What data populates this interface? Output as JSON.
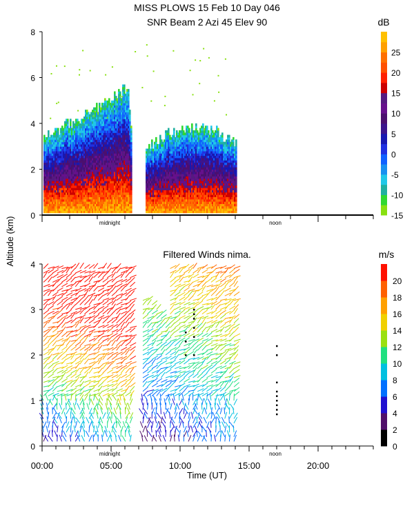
{
  "chart_data": [
    {
      "type": "heatmap",
      "title_line1": "MISS PLOWS  15 Feb 10 Day 046",
      "title_line2": "SNR Beam 2 Azi  45 Elev 90",
      "ylabel": "Altitude (km)",
      "ylim": [
        0,
        8
      ],
      "yticks": [
        "0",
        "2",
        "4",
        "6",
        "8"
      ],
      "xlim": [
        0,
        24
      ],
      "markers": [
        "midnight",
        "noon"
      ],
      "colorbar": {
        "units": "dB",
        "labels": [
          "-15",
          "-10",
          "-5",
          "0",
          "5",
          "10",
          "15",
          "20",
          "25"
        ],
        "bins": [
          -15,
          -12.5,
          -10,
          -7.5,
          -5,
          -2.5,
          0,
          2.5,
          5,
          7.5,
          10,
          12.5,
          15,
          17.5,
          20,
          22.5,
          25,
          27.5,
          30
        ],
        "colors": [
          "#88e010",
          "#30d830",
          "#20b0a0",
          "#20c8e8",
          "#1890f0",
          "#1060ff",
          "#2030e0",
          "#1818b0",
          "#3c148c",
          "#4b0f6e",
          "#66108c",
          "#551a80",
          "#cc0000",
          "#ff2000",
          "#ff5000",
          "#ff7000",
          "#ffa000",
          "#ffc000"
        ]
      },
      "data_regions": [
        {
          "x": [
            0.1,
            6.6
          ],
          "y": [
            0.1,
            5.8
          ],
          "desc": "night echo block"
        },
        {
          "x": [
            7.4,
            14.0
          ],
          "y": [
            0.1,
            3.9
          ],
          "desc": "day echo block"
        }
      ]
    },
    {
      "type": "scatter",
      "title": "Filtered Winds nima.",
      "ylabel": "Altitude (km)",
      "xlabel": "Time (UT)",
      "ylim": [
        0,
        4
      ],
      "yticks": [
        "0",
        "1",
        "2",
        "3",
        "4"
      ],
      "xlim": [
        0,
        24
      ],
      "xticks": [
        "00:00",
        "05:00",
        "10:00",
        "15:00",
        "20:00"
      ],
      "markers": [
        "midnight",
        "noon"
      ],
      "colorbar": {
        "units": "m/s",
        "labels": [
          "0",
          "2",
          "4",
          "6",
          "8",
          "10",
          "12",
          "14",
          "16",
          "18",
          "20"
        ],
        "colors": [
          "#000000",
          "#50106a",
          "#2010d0",
          "#0070ff",
          "#00c0e0",
          "#20e080",
          "#9ae010",
          "#f0d000",
          "#ffa000",
          "#ff6000",
          "#ff1000"
        ]
      },
      "wind_regions": [
        {
          "x": [
            0.1,
            6.6
          ],
          "y": [
            0.1,
            3.95
          ]
        },
        {
          "x": [
            7.3,
            14.0
          ],
          "y": [
            0.1,
            3.95
          ]
        }
      ],
      "dots": [
        {
          "t": 17.0,
          "alt": [
            2.2,
            2.0,
            1.4,
            1.2,
            1.1,
            1.0,
            0.9,
            0.8,
            0.7
          ]
        },
        {
          "t": 11.0,
          "alt": [
            3.0,
            2.9,
            2.8,
            2.6,
            2.4,
            2.0
          ]
        },
        {
          "t": 10.4,
          "alt": [
            2.5,
            2.3,
            2.0
          ]
        }
      ]
    }
  ]
}
